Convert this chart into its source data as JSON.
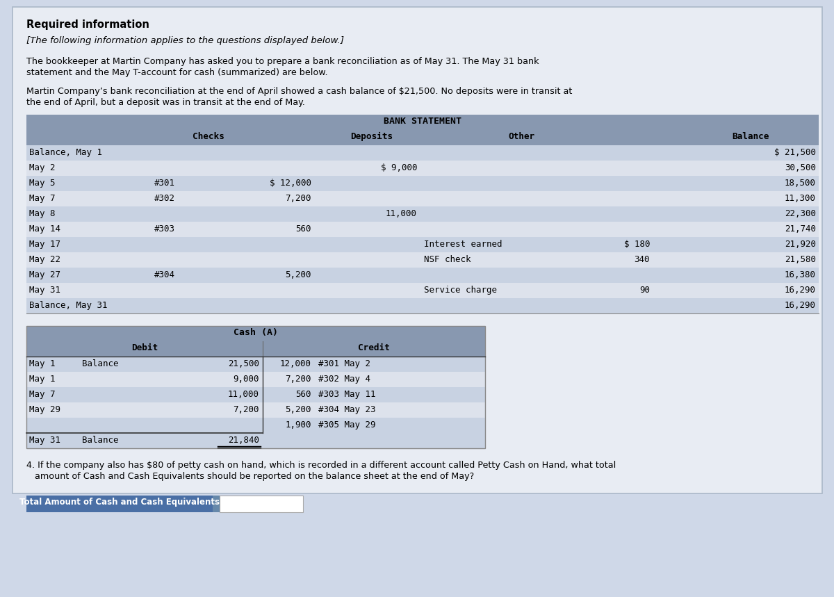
{
  "bg_color": "#cfd8e8",
  "panel_bg": "#e8ecf3",
  "header_bg": "#8898b0",
  "row_alt": "#c8d2e2",
  "row_main": "#dde2ec",
  "title_bold": "Required information",
  "subtitle_italic": "[The following information applies to the questions displayed below.]",
  "para1a": "The bookkeeper at Martin Company has asked you to prepare a bank reconciliation as of May 31. The May 31 bank",
  "para1b": "statement and the May T-account for cash (summarized) are below.",
  "para2a": "Martin Company’s bank reconciliation at the end of April showed a cash balance of $21,500. No deposits were in transit at",
  "para2b": "the end of April, but a deposit was in transit at the end of May.",
  "bank_title": "BANK STATEMENT",
  "bank_rows": [
    {
      "date": "Balance, May 1",
      "check_num": "",
      "check_amt": "",
      "deposit": "",
      "other_label": "",
      "other_amt": "",
      "balance": "$ 21,500"
    },
    {
      "date": "May 2",
      "check_num": "",
      "check_amt": "",
      "deposit": "$ 9,000",
      "other_label": "",
      "other_amt": "",
      "balance": "30,500"
    },
    {
      "date": "May 5",
      "check_num": "#301",
      "check_amt": "$ 12,000",
      "deposit": "",
      "other_label": "",
      "other_amt": "",
      "balance": "18,500"
    },
    {
      "date": "May 7",
      "check_num": "#302",
      "check_amt": "7,200",
      "deposit": "",
      "other_label": "",
      "other_amt": "",
      "balance": "11,300"
    },
    {
      "date": "May 8",
      "check_num": "",
      "check_amt": "",
      "deposit": "11,000",
      "other_label": "",
      "other_amt": "",
      "balance": "22,300"
    },
    {
      "date": "May 14",
      "check_num": "#303",
      "check_amt": "560",
      "deposit": "",
      "other_label": "",
      "other_amt": "",
      "balance": "21,740"
    },
    {
      "date": "May 17",
      "check_num": "",
      "check_amt": "",
      "deposit": "",
      "other_label": "Interest earned",
      "other_amt": "$ 180",
      "balance": "21,920"
    },
    {
      "date": "May 22",
      "check_num": "",
      "check_amt": "",
      "deposit": "",
      "other_label": "NSF check",
      "other_amt": "340",
      "balance": "21,580"
    },
    {
      "date": "May 27",
      "check_num": "#304",
      "check_amt": "5,200",
      "deposit": "",
      "other_label": "",
      "other_amt": "",
      "balance": "16,380"
    },
    {
      "date": "May 31",
      "check_num": "",
      "check_amt": "",
      "deposit": "",
      "other_label": "Service charge",
      "other_amt": "90",
      "balance": "16,290"
    },
    {
      "date": "Balance, May 31",
      "check_num": "",
      "check_amt": "",
      "deposit": "",
      "other_label": "",
      "other_amt": "",
      "balance": "16,290"
    }
  ],
  "cash_title": "Cash (A)",
  "cash_debit_rows": [
    {
      "date": "May 1",
      "label": "Balance",
      "amount": "21,500"
    },
    {
      "date": "May 1",
      "label": "",
      "amount": "9,000"
    },
    {
      "date": "May 7",
      "label": "",
      "amount": "11,000"
    },
    {
      "date": "May 29",
      "label": "",
      "amount": "7,200"
    },
    {
      "date": "",
      "label": "",
      "amount": ""
    }
  ],
  "cash_credit_rows": [
    {
      "amount": "12,000",
      "check": "#301 May 2"
    },
    {
      "amount": "7,200",
      "check": "#302 May 4"
    },
    {
      "amount": "560",
      "check": "#303 May 11"
    },
    {
      "amount": "5,200",
      "check": "#304 May 23"
    },
    {
      "amount": "1,900",
      "check": "#305 May 29"
    }
  ],
  "cash_balance_date": "May 31",
  "cash_balance_label": "Balance",
  "cash_balance_amount": "21,840",
  "question4": "4. If the company also has $80 of petty cash on hand, which is recorded in a different account called Petty Cash on Hand, what total",
  "question4b": "   amount of Cash and Cash Equivalents should be reported on the balance sheet at the end of May?",
  "answer_label": "Total Amount of Cash and Cash Equivalents",
  "answer_box_color": "#4a6fa5",
  "answer_input_bg": "#ffffff"
}
